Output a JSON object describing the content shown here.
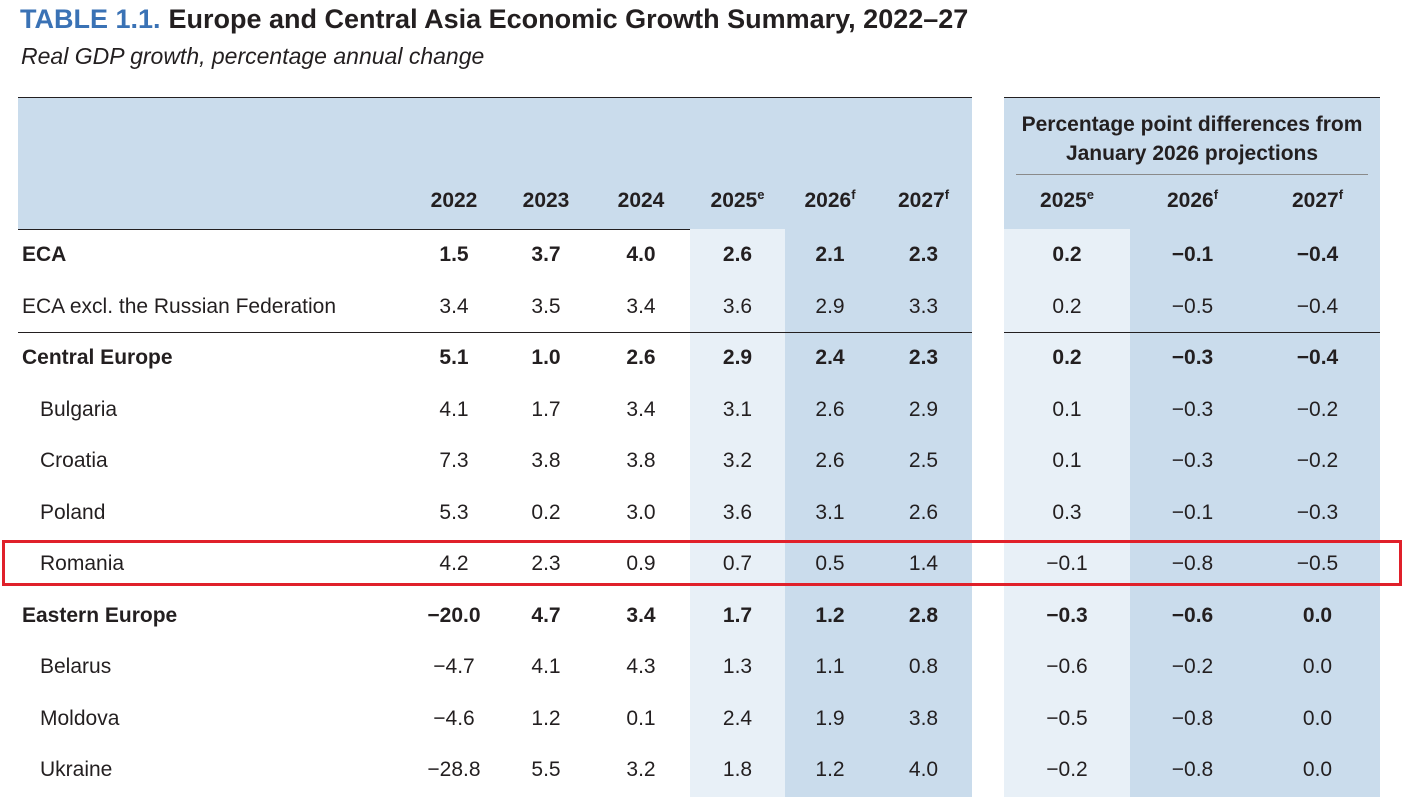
{
  "title": {
    "number": "TABLE 1.1.",
    "text": "Europe and Central Asia Economic Growth Summary, 2022–27"
  },
  "subtitle": "Real GDP growth, percentage annual change",
  "colors": {
    "title_blue": "#3a72b5",
    "header_bg": "#cadcec",
    "light_shade": "#e8f0f7",
    "dark_shade": "#cadcec",
    "highlight": "#e0202a"
  },
  "columns": [
    {
      "year": "2022",
      "sup": ""
    },
    {
      "year": "2023",
      "sup": ""
    },
    {
      "year": "2024",
      "sup": ""
    },
    {
      "year": "2025",
      "sup": "e"
    },
    {
      "year": "2026",
      "sup": "f"
    },
    {
      "year": "2027",
      "sup": "f"
    }
  ],
  "diff_group_title": "Percentage point differences from January 2026 projections",
  "diff_columns": [
    {
      "year": "2025",
      "sup": "e"
    },
    {
      "year": "2026",
      "sup": "f"
    },
    {
      "year": "2027",
      "sup": "f"
    }
  ],
  "rows": [
    {
      "label": "ECA",
      "bold": true,
      "indent": false,
      "values": [
        "1.5",
        "3.7",
        "4.0",
        "2.6",
        "2.1",
        "2.3"
      ],
      "diffs": [
        "0.2",
        "−0.1",
        "−0.4"
      ]
    },
    {
      "label": "ECA excl. the Russian Federation",
      "bold": false,
      "indent": false,
      "values": [
        "3.4",
        "3.5",
        "3.4",
        "3.6",
        "2.9",
        "3.3"
      ],
      "diffs": [
        "0.2",
        "−0.5",
        "−0.4"
      ]
    },
    {
      "label": "Central Europe",
      "bold": true,
      "indent": false,
      "values": [
        "5.1",
        "1.0",
        "2.6",
        "2.9",
        "2.4",
        "2.3"
      ],
      "diffs": [
        "0.2",
        "−0.3",
        "−0.4"
      ]
    },
    {
      "label": "Bulgaria",
      "bold": false,
      "indent": true,
      "values": [
        "4.1",
        "1.7",
        "3.4",
        "3.1",
        "2.6",
        "2.9"
      ],
      "diffs": [
        "0.1",
        "−0.3",
        "−0.2"
      ]
    },
    {
      "label": "Croatia",
      "bold": false,
      "indent": true,
      "values": [
        "7.3",
        "3.8",
        "3.8",
        "3.2",
        "2.6",
        "2.5"
      ],
      "diffs": [
        "0.1",
        "−0.3",
        "−0.2"
      ]
    },
    {
      "label": "Poland",
      "bold": false,
      "indent": true,
      "values": [
        "5.3",
        "0.2",
        "3.0",
        "3.6",
        "3.1",
        "2.6"
      ],
      "diffs": [
        "0.3",
        "−0.1",
        "−0.3"
      ]
    },
    {
      "label": "Romania",
      "bold": false,
      "indent": true,
      "highlighted": true,
      "values": [
        "4.2",
        "2.3",
        "0.9",
        "0.7",
        "0.5",
        "1.4"
      ],
      "diffs": [
        "−0.1",
        "−0.8",
        "−0.5"
      ]
    },
    {
      "label": "Eastern Europe",
      "bold": true,
      "indent": false,
      "values": [
        "−20.0",
        "4.7",
        "3.4",
        "1.7",
        "1.2",
        "2.8"
      ],
      "diffs": [
        "−0.3",
        "−0.6",
        "0.0"
      ]
    },
    {
      "label": "Belarus",
      "bold": false,
      "indent": true,
      "values": [
        "−4.7",
        "4.1",
        "4.3",
        "1.3",
        "1.1",
        "0.8"
      ],
      "diffs": [
        "−0.6",
        "−0.2",
        "0.0"
      ]
    },
    {
      "label": "Moldova",
      "bold": false,
      "indent": true,
      "values": [
        "−4.6",
        "1.2",
        "0.1",
        "2.4",
        "1.9",
        "3.8"
      ],
      "diffs": [
        "−0.5",
        "−0.8",
        "0.0"
      ]
    },
    {
      "label": "Ukraine",
      "bold": false,
      "indent": true,
      "values": [
        "−28.8",
        "5.5",
        "3.2",
        "1.8",
        "1.2",
        "4.0"
      ],
      "diffs": [
        "−0.2",
        "−0.8",
        "0.0"
      ]
    }
  ]
}
